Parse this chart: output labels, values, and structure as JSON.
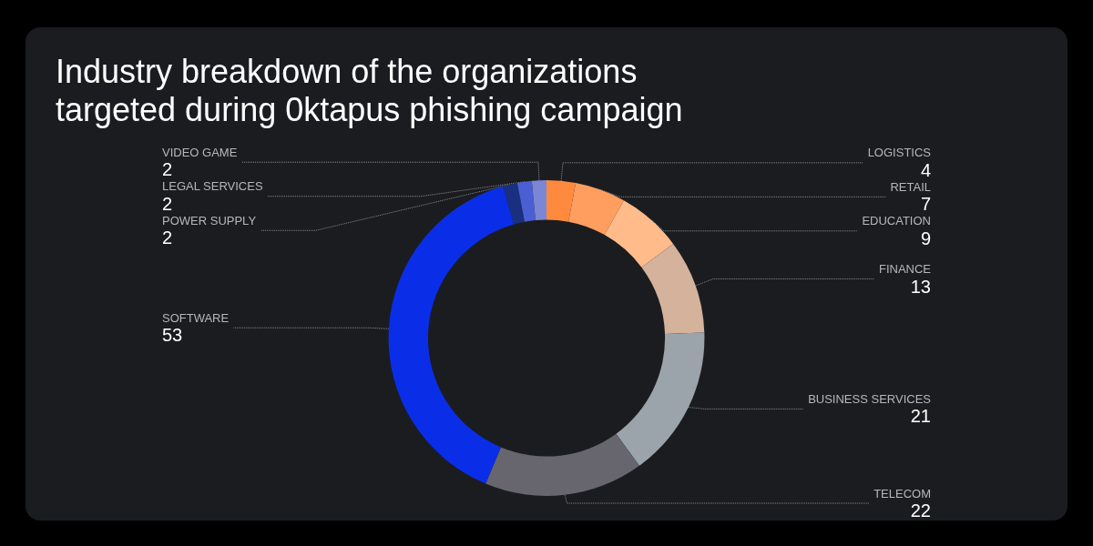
{
  "chart_data": {
    "type": "donut",
    "title": "Industry breakdown of the organizations\ntargeted during 0ktapus phishing campaign",
    "categories": [
      "LOGISTICS",
      "RETAIL",
      "EDUCATION",
      "FINANCE",
      "BUSINESS SERVICES",
      "TELECOM",
      "SOFTWARE",
      "POWER SUPPLY",
      "LEGAL SERVICES",
      "VIDEO GAME"
    ],
    "values": [
      4,
      7,
      9,
      13,
      21,
      22,
      53,
      2,
      2,
      2
    ],
    "colors": [
      "#ff8a3d",
      "#ff9e5e",
      "#ffbb8a",
      "#d4b29c",
      "#9ba3ab",
      "#67656d",
      "#0a2ee8",
      "#1b2f80",
      "#4a5fd4",
      "#7b86d4"
    ],
    "data_labels": true
  }
}
